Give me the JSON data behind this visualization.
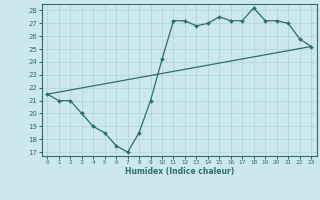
{
  "xlabel": "Humidex (Indice chaleur)",
  "background_color": "#cce8ec",
  "grid_color": "#b0d8dc",
  "line_color": "#2e6e6e",
  "xlim": [
    -0.5,
    23.5
  ],
  "ylim": [
    16.7,
    28.5
  ],
  "yticks": [
    17,
    18,
    19,
    20,
    21,
    22,
    23,
    24,
    25,
    26,
    27,
    28
  ],
  "xticks": [
    0,
    1,
    2,
    3,
    4,
    5,
    6,
    7,
    8,
    9,
    10,
    11,
    12,
    13,
    14,
    15,
    16,
    17,
    18,
    19,
    20,
    21,
    22,
    23
  ],
  "curve1_x": [
    0,
    1,
    2,
    3,
    4,
    5,
    6,
    7,
    8,
    9,
    10,
    11,
    12,
    13,
    14,
    15,
    16,
    17,
    18,
    19,
    20,
    21,
    22,
    23
  ],
  "curve1_y": [
    21.5,
    21.0,
    21.0,
    20.0,
    19.0,
    18.5,
    17.5,
    17.0,
    18.5,
    21.0,
    24.2,
    27.2,
    27.2,
    26.8,
    27.0,
    27.5,
    27.2,
    27.2,
    28.2,
    27.2,
    27.2,
    27.0,
    25.8,
    25.2
  ],
  "curve2_x": [
    0,
    23
  ],
  "curve2_y": [
    21.5,
    25.2
  ]
}
